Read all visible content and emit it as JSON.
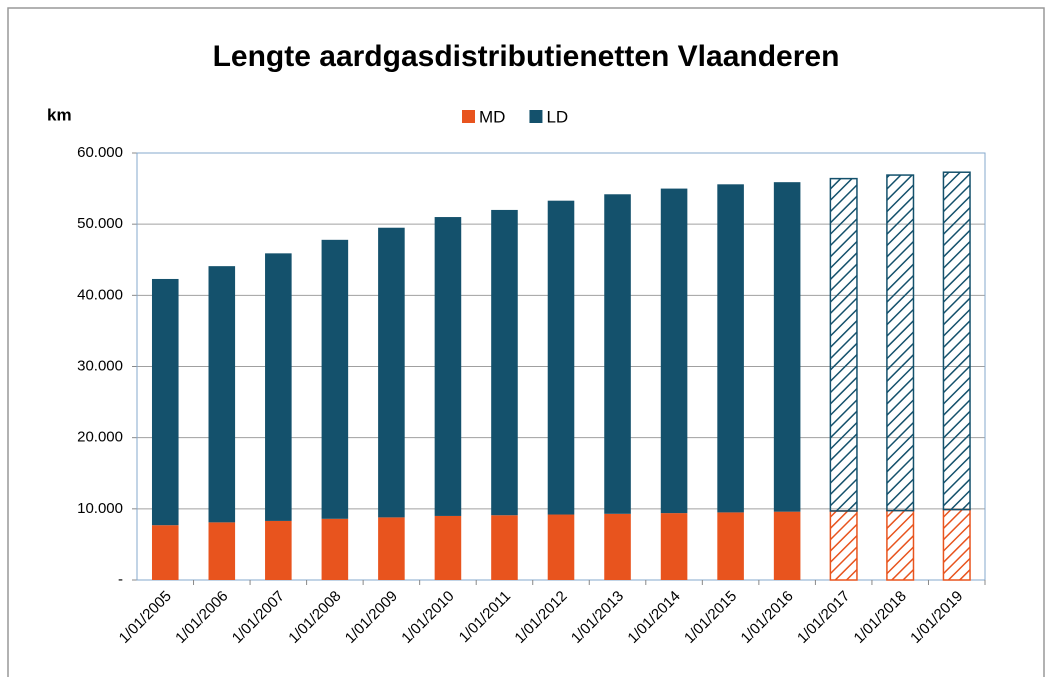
{
  "chart_data": {
    "type": "stacked_bar",
    "title": "Lengte aardgasdistributienetten Vlaanderen",
    "y_label": "km",
    "categories": [
      "1/01/2005",
      "1/01/2006",
      "1/01/2007",
      "1/01/2008",
      "1/01/2009",
      "1/01/2010",
      "1/01/2011",
      "1/01/2012",
      "1/01/2013",
      "1/01/2014",
      "1/01/2015",
      "1/01/2016",
      "1/01/2017",
      "1/01/2018",
      "1/01/2019"
    ],
    "series": [
      {
        "name": "MD",
        "color": "#e8541e",
        "values": [
          7700,
          8100,
          8300,
          8600,
          8800,
          9000,
          9100,
          9200,
          9300,
          9400,
          9500,
          9600,
          9700,
          9750,
          9900
        ]
      },
      {
        "name": "LD",
        "color": "#14516c",
        "values": [
          34600,
          36000,
          37600,
          39200,
          40700,
          42000,
          42900,
          44100,
          44900,
          45600,
          46100,
          46300,
          46700,
          47150,
          47400
        ]
      }
    ],
    "hatch": [
      false,
      false,
      false,
      false,
      false,
      false,
      false,
      false,
      false,
      false,
      false,
      false,
      true,
      true,
      true
    ],
    "ylim": [
      0,
      60000
    ],
    "yticks": [
      {
        "value": 0,
        "label": "-"
      },
      {
        "value": 10000,
        "label": "10.000"
      },
      {
        "value": 20000,
        "label": "20.000"
      },
      {
        "value": 30000,
        "label": "30.000"
      },
      {
        "value": 40000,
        "label": "40.000"
      },
      {
        "value": 50000,
        "label": "50.000"
      },
      {
        "value": 60000,
        "label": "60.000"
      }
    ],
    "grid": true,
    "legend": "top"
  }
}
